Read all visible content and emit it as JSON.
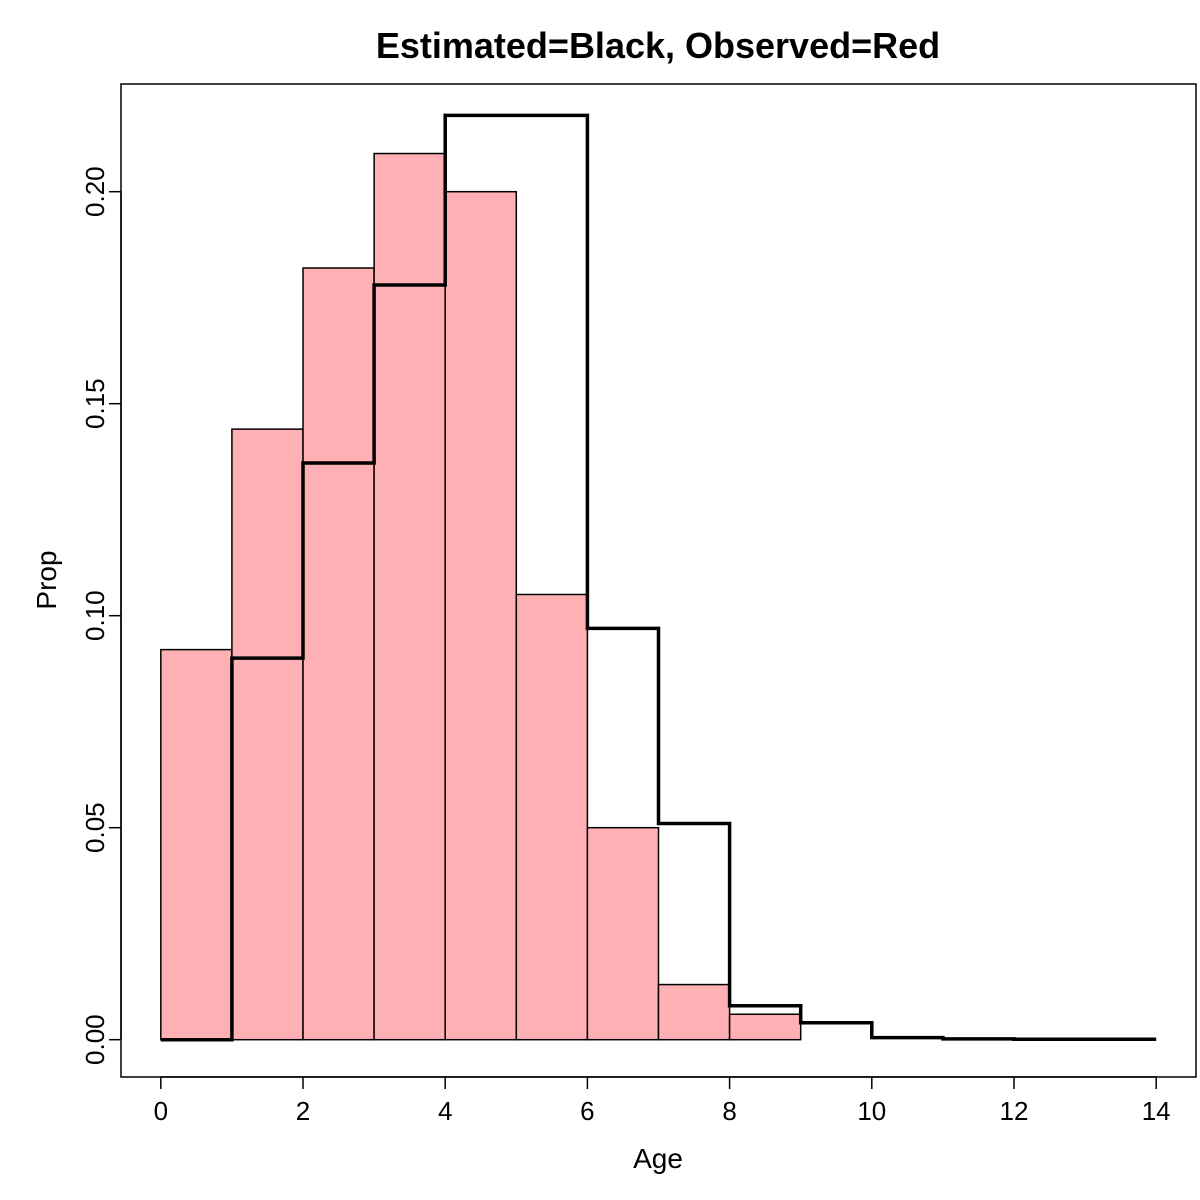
{
  "chart_data": {
    "type": "bar",
    "title": "Estimated=Black, Observed=Red",
    "xlabel": "Age",
    "ylabel": "Prop",
    "xlim": [
      -0.56,
      14.56
    ],
    "ylim": [
      -0.0088,
      0.2254
    ],
    "x_ticks": [
      0,
      2,
      4,
      6,
      8,
      10,
      12,
      14
    ],
    "y_ticks": [
      0.0,
      0.05,
      0.1,
      0.15,
      0.2
    ],
    "y_tick_labels": [
      "0.00",
      "0.05",
      "0.10",
      "0.15",
      "0.20"
    ],
    "grid": false,
    "bin_width": 1,
    "series": [
      {
        "role": "observed",
        "style": "filled-bars",
        "color": "#ffb0b4",
        "x": [
          0,
          1,
          2,
          3,
          4,
          5,
          6,
          7,
          8
        ],
        "values": [
          0.092,
          0.144,
          0.182,
          0.209,
          0.2,
          0.105,
          0.05,
          0.013,
          0.006
        ]
      },
      {
        "role": "estimated",
        "style": "step",
        "color": "#000000",
        "x": [
          0,
          1,
          2,
          3,
          4,
          5,
          6,
          7,
          8,
          9,
          10,
          11,
          12,
          13
        ],
        "values": [
          0.0,
          0.09,
          0.136,
          0.178,
          0.218,
          0.218,
          0.097,
          0.051,
          0.008,
          0.004,
          0.0005,
          0.0002,
          0.0001,
          0.0001
        ]
      }
    ]
  }
}
